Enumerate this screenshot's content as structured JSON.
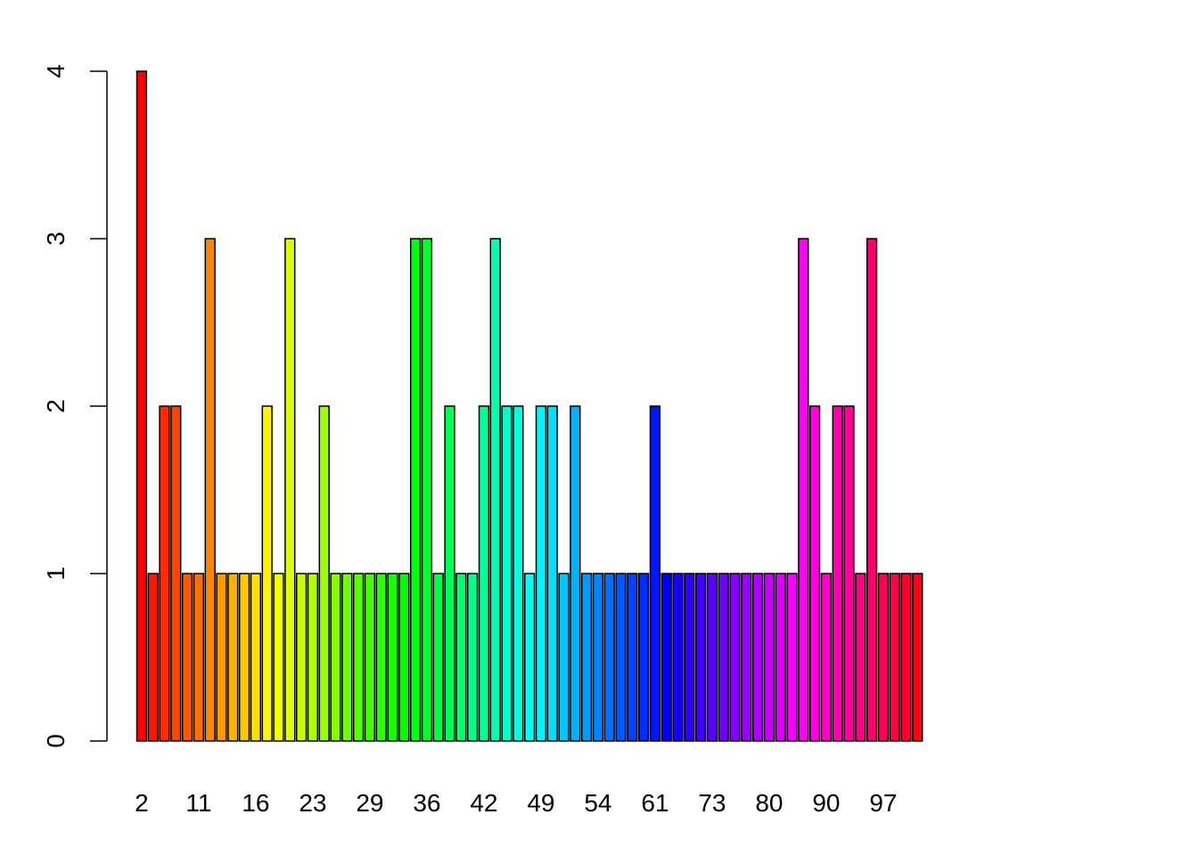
{
  "chart_data": {
    "type": "bar",
    "title": "",
    "xlabel": "",
    "ylabel": "",
    "ylim": [
      0,
      4
    ],
    "y_ticks": [
      "0",
      "1",
      "2",
      "3",
      "4"
    ],
    "x_tick_labels": [
      "2",
      "11",
      "16",
      "23",
      "29",
      "36",
      "42",
      "49",
      "54",
      "61",
      "73",
      "80",
      "90",
      "97"
    ],
    "label_every": 5,
    "palette": "rainbow",
    "values": [
      4,
      1,
      2,
      2,
      1,
      1,
      3,
      1,
      1,
      1,
      1,
      2,
      1,
      3,
      1,
      1,
      2,
      1,
      1,
      1,
      1,
      1,
      1,
      1,
      3,
      3,
      1,
      2,
      1,
      1,
      2,
      3,
      2,
      2,
      1,
      2,
      2,
      1,
      2,
      1,
      1,
      1,
      1,
      1,
      1,
      2,
      1,
      1,
      1,
      1,
      1,
      1,
      1,
      1,
      1,
      1,
      1,
      1,
      3,
      2,
      1,
      2,
      2,
      1,
      3,
      1,
      1,
      1,
      1
    ]
  }
}
